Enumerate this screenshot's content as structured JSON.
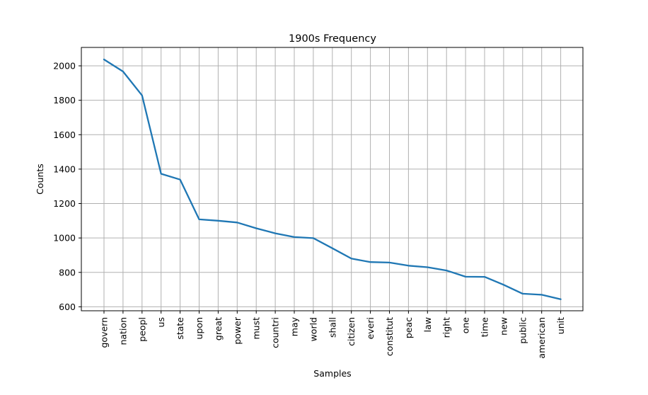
{
  "chart_data": {
    "type": "line",
    "title": "1900s Frequency",
    "xlabel": "Samples",
    "ylabel": "Counts",
    "categories": [
      "govern",
      "nation",
      "peopl",
      "us",
      "state",
      "upon",
      "great",
      "power",
      "must",
      "countri",
      "may",
      "world",
      "shall",
      "citizen",
      "everi",
      "constitut",
      "peac",
      "law",
      "right",
      "one",
      "time",
      "new",
      "public",
      "american",
      "unit"
    ],
    "series": [
      {
        "values": [
          2037,
          1967,
          1828,
          1373,
          1339,
          1108,
          1100,
          1090,
          1056,
          1027,
          1005,
          999,
          940,
          880,
          860,
          857,
          839,
          830,
          811,
          775,
          774,
          728,
          676,
          670,
          644
        ]
      }
    ],
    "ylim": [
      577,
      2107
    ],
    "yticks": [
      600,
      800,
      1000,
      1200,
      1400,
      1600,
      1800,
      2000
    ],
    "grid": true,
    "line_color": "#1f77b4"
  }
}
